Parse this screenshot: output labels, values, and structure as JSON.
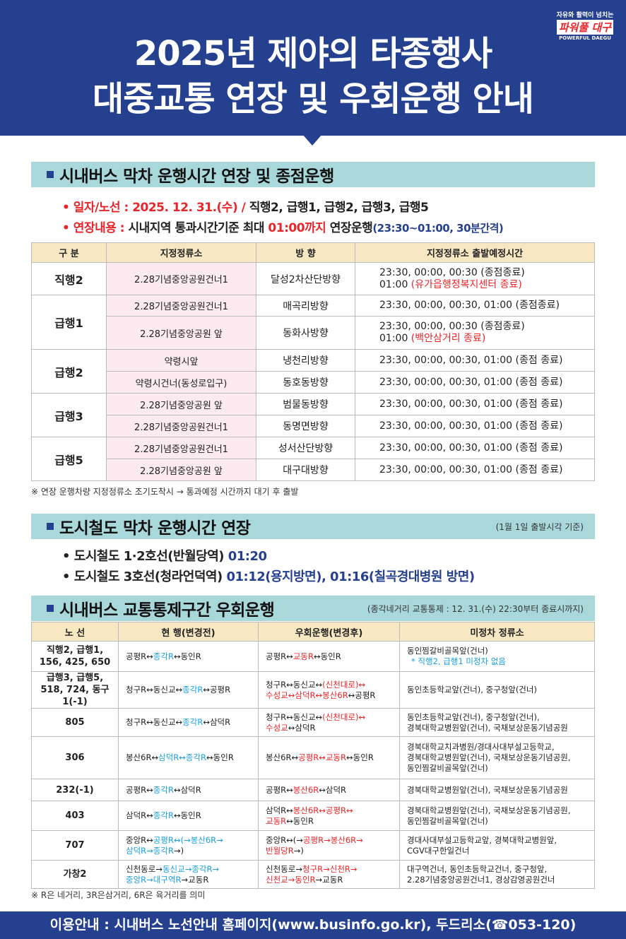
{
  "logo": {
    "slogan": "자유와 활력이 넘치는",
    "name": "파워풀 대구",
    "english": "POWERFUL DAEGU"
  },
  "title": {
    "line1": "2025년 제야의 타종행사",
    "line2": "대중교통 연장 및 우회운행 안내"
  },
  "colors": {
    "header": "#25408f",
    "accent_red": "#e8262a",
    "accent_cyan": "#1aa0e0",
    "section_bar": "#a9d8db"
  },
  "bus_extension": {
    "heading": "시내버스 막차 운행시간 연장 및 종점운행",
    "date_label": "• 일자/노선 : 2025. 12. 31.(수) /",
    "date_routes": " 직행2, 급행1, 급행2, 급행3, 급행5",
    "ext_label": "• 연장내용 :",
    "ext_text1": " 시내지역 통과시간기준 최대 ",
    "ext_time": "01:00까지",
    "ext_text2": " 연장운행",
    "ext_interval": "(23:30~01:00, 30분간격)",
    "headers": [
      "구 분",
      "지정정류소",
      "방 향",
      "지정정류소 출발예정시간"
    ],
    "rows": [
      {
        "route": "직행2",
        "span": 1,
        "stop": "2.28기념중앙공원건너1",
        "dir": "달성2차산단방향",
        "time": "23:30, 00:00, 00:30 (종점종료)",
        "time2": "01:00 ",
        "time2_red": "(유가읍행정복지센터 종료)"
      },
      {
        "route": "급행1",
        "span": 2,
        "stop": "2.28기념중앙공원건너1",
        "dir": "매곡리방향",
        "time": "23:30, 00:00, 00:30, 01:00 (종점종료)"
      },
      {
        "stop": "2.28기념중앙공원 앞",
        "dir": "동화사방향",
        "time": "23:30, 00:00, 00:30 (종점종료)",
        "time2": "01:00 ",
        "time2_red": "(백안삼거리 종료)"
      },
      {
        "route": "급행2",
        "span": 2,
        "stop": "약령시앞",
        "dir": "냉천리방향",
        "time": "23:30, 00:00, 00:30, 01:00 (종점 종료)"
      },
      {
        "stop": "약령시건너(동성로입구)",
        "dir": "동호동방향",
        "time": "23:30, 00:00, 00:30, 01:00 (종점 종료)"
      },
      {
        "route": "급행3",
        "span": 2,
        "stop": "2.28기념중앙공원 앞",
        "dir": "범물동방향",
        "time": "23:30, 00:00, 00:30, 01:00 (종점 종료)"
      },
      {
        "stop": "2.28기념중앙공원건너1",
        "dir": "동명면방향",
        "time": "23:30, 00:00, 00:30, 01:00 (종점 종료)"
      },
      {
        "route": "급행5",
        "span": 2,
        "stop": "2.28기념중앙공원건너1",
        "dir": "성서산단방향",
        "time": "23:30, 00:00, 00:30, 01:00 (종점 종료)"
      },
      {
        "stop": "2.28기념중앙공원 앞",
        "dir": "대구대방향",
        "time": "23:30, 00:00, 00:30, 01:00 (종점 종료)"
      }
    ],
    "footnote": "※ 연장 운행차량 지정정류소 조기도착시 → 통과예정 시간까지 대기 후 출발"
  },
  "metro": {
    "heading": "도시철도 막차 운행시간 연장",
    "note": "(1월 1일 출발시각 기준)",
    "line1_text": "• 도시철도 1·2호선(반월당역) ",
    "line1_time": "01:20",
    "line3_text": "• 도시철도 3호선(청라언덕역) ",
    "line3_time": "01:12(용지방면), 01:16(칠곡경대병원 방면)"
  },
  "detour": {
    "heading": "시내버스 교통통제구간 우회운행",
    "note": "(종각네거리 교통통제 : 12. 31.(수) 22:30부터 종료시까지)",
    "headers": [
      "노 선",
      "현 행(변경전)",
      "우회운행(변경후)",
      "미정차 정류소"
    ],
    "rows": [
      {
        "route": [
          "직행2, 급행1,",
          "156, 425, 650"
        ],
        "before": [
          [
            [
              "k",
              "공평R↔"
            ],
            [
              "b",
              "종각R"
            ],
            [
              "k",
              "↔동인R"
            ]
          ]
        ],
        "after": [
          [
            [
              "k",
              "공평R↔"
            ],
            [
              "r",
              "교동R"
            ],
            [
              "k",
              "↔동인R"
            ]
          ]
        ],
        "skip": [
          "동인찜갈비골목앞(건너)"
        ],
        "skip_note": "* 직행2, 급행1 미정차 없음"
      },
      {
        "route": [
          "급행3, 급행5,",
          "518, 724, 동구1(-1)"
        ],
        "before": [
          [
            [
              "k",
              "청구R↔동신교↔"
            ],
            [
              "b",
              "종각R"
            ],
            [
              "k",
              "↔공평R"
            ]
          ]
        ],
        "after": [
          [
            [
              "k",
              "청구R↔동신교↔"
            ],
            [
              "r",
              "(신천대로)↔"
            ]
          ],
          [
            [
              "r",
              "수성교↔삼덕R↔봉산6R"
            ],
            [
              "k",
              "↔공평R"
            ]
          ]
        ],
        "skip": [
          "동인초등학교앞(건너), 중구청앞(건너)"
        ]
      },
      {
        "route": [
          "805"
        ],
        "before": [
          [
            [
              "k",
              "청구R↔동신교↔"
            ],
            [
              "b",
              "종각R"
            ],
            [
              "k",
              "↔삼덕R"
            ]
          ]
        ],
        "after": [
          [
            [
              "k",
              "청구R↔동신교↔"
            ],
            [
              "r",
              "(신천대로)↔"
            ]
          ],
          [
            [
              "r",
              "수성교"
            ],
            [
              "k",
              "↔삼덕R"
            ]
          ]
        ],
        "skip": [
          "동인초등학교앞(건너), 중구청앞(건너),",
          "경북대학교병원앞(건너), 국채보상운동기념공원"
        ]
      },
      {
        "route": [
          "306"
        ],
        "before": [
          [
            [
              "k",
              "봉산6R↔"
            ],
            [
              "b",
              "삼덕R↔종각R"
            ],
            [
              "k",
              "↔동인R"
            ]
          ]
        ],
        "after": [
          [
            [
              "k",
              "봉산6R↔"
            ],
            [
              "r",
              "공평R↔교동R"
            ],
            [
              "k",
              "↔동인R"
            ]
          ]
        ],
        "skip": [
          "경북대학교치과병원/경대사대부설고등학교,",
          "경북대학교병원앞(건너), 국채보상운동기념공원,",
          "동인찜갈비골목앞(건너)"
        ]
      },
      {
        "route": [
          "232(-1)"
        ],
        "before": [
          [
            [
              "k",
              "공평R↔"
            ],
            [
              "b",
              "종각R"
            ],
            [
              "k",
              "↔삼덕R"
            ]
          ]
        ],
        "after": [
          [
            [
              "k",
              "공평R↔"
            ],
            [
              "r",
              "봉산6R"
            ],
            [
              "k",
              "↔삼덕R"
            ]
          ]
        ],
        "skip": [
          "경북대학교병원앞(건너), 국채보상운동기념공원"
        ]
      },
      {
        "route": [
          "403"
        ],
        "before": [
          [
            [
              "k",
              "삼덕R↔"
            ],
            [
              "b",
              "종각R"
            ],
            [
              "k",
              "↔동인R"
            ]
          ]
        ],
        "after": [
          [
            [
              "k",
              "삼덕R↔"
            ],
            [
              "r",
              "봉산6R↔공평R↔"
            ]
          ],
          [
            [
              "r",
              "교동R"
            ],
            [
              "k",
              "↔동인R"
            ]
          ]
        ],
        "skip": [
          "경북대학교병원앞(건너), 국채보상운동기념공원,",
          "동인찜갈비골목앞(건너)"
        ]
      },
      {
        "route": [
          "707"
        ],
        "before": [
          [
            [
              "k",
              "중앙R↔"
            ],
            [
              "b",
              "공평R↔(→봉산6R→"
            ]
          ],
          [
            [
              "b",
              "삼덕R→종각R"
            ],
            [
              "k",
              "→)"
            ]
          ]
        ],
        "after": [
          [
            [
              "k",
              "중앙R↔(→"
            ],
            [
              "r",
              "공평R→봉산6R→"
            ]
          ],
          [
            [
              "r",
              "반월당R"
            ],
            [
              "k",
              "→)"
            ]
          ]
        ],
        "skip": [
          "경대사대부설고등학교앞, 경북대학교병원앞,",
          "CGV대구한일건너"
        ]
      },
      {
        "route": [
          "가창2"
        ],
        "before": [
          [
            [
              "k",
              "신천동로→"
            ],
            [
              "b",
              "동신교→종각R→"
            ]
          ],
          [
            [
              "b",
              "중앙R→대구역R"
            ],
            [
              "k",
              "→교동R"
            ]
          ]
        ],
        "after": [
          [
            [
              "k",
              "신천동로→"
            ],
            [
              "r",
              "청구R→신천R→"
            ]
          ],
          [
            [
              "r",
              "신천교→동인R"
            ],
            [
              "k",
              "→교동R"
            ]
          ]
        ],
        "skip": [
          "대구역건너, 동인초등학교건너, 중구청앞,",
          "2.28기념중앙공원건너1, 경상감영공원건너"
        ]
      }
    ],
    "footnote": "※ R은 네거리, 3R은삼거리, 6R은 육거리를 의미"
  },
  "footer": {
    "text": "이용안내 : 시내버스 노선안내 홈페이지(www.businfo.go.kr), 두드리소(☎053-120)"
  }
}
